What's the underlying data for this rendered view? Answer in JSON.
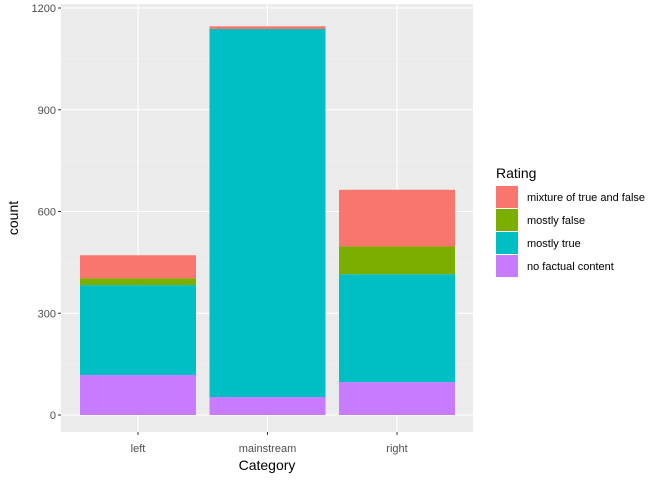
{
  "chart_data": {
    "type": "bar",
    "stacked": true,
    "title": "",
    "xlabel": "Category",
    "ylabel": "count",
    "categories": [
      "left",
      "mainstream",
      "right"
    ],
    "ylim": [
      -40,
      1200
    ],
    "yticks": [
      0,
      300,
      600,
      900,
      1200
    ],
    "grid": true,
    "legend": {
      "title": "Rating",
      "position": "right"
    },
    "series": [
      {
        "name": "no factual content",
        "color": "#C77CFF",
        "values": [
          118,
          53,
          97
        ]
      },
      {
        "name": "mostly true",
        "color": "#00BFC4",
        "values": [
          265,
          1085,
          318
        ]
      },
      {
        "name": "mostly false",
        "color": "#7CAE00",
        "values": [
          20,
          0,
          82
        ]
      },
      {
        "name": "mixture of true and false",
        "color": "#F8766D",
        "values": [
          68,
          8,
          167
        ]
      }
    ],
    "legend_order": [
      "mixture of true and false",
      "mostly false",
      "mostly true",
      "no factual content"
    ],
    "colors": {
      "panel": "#EBEBEB",
      "grid_major": "#FFFFFF",
      "grid_minor": "#F2F2F2",
      "tick": "#333333"
    }
  }
}
